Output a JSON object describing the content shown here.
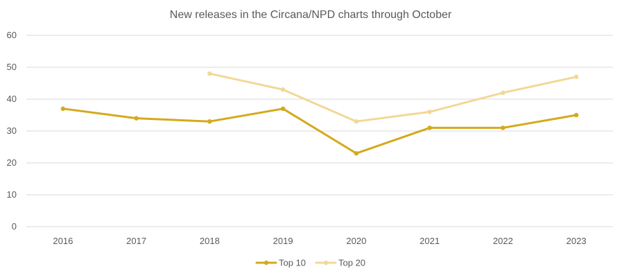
{
  "chart_data": {
    "type": "line",
    "title": "New releases in the Circana/NPD charts through October",
    "xlabel": "",
    "ylabel": "",
    "categories": [
      "2016",
      "2017",
      "2018",
      "2019",
      "2020",
      "2021",
      "2022",
      "2023"
    ],
    "ylim": [
      0,
      60
    ],
    "yticks": [
      "0",
      "10",
      "20",
      "30",
      "40",
      "50",
      "60"
    ],
    "grid": "horizontal",
    "legend_position": "bottom",
    "series": [
      {
        "name": "Top 10",
        "color": "#d4a91c",
        "values": [
          37,
          34,
          33,
          37,
          23,
          31,
          31,
          35
        ]
      },
      {
        "name": "Top 20",
        "color": "#f2d896",
        "values": [
          null,
          null,
          48,
          43,
          33,
          36,
          42,
          47
        ]
      }
    ]
  }
}
